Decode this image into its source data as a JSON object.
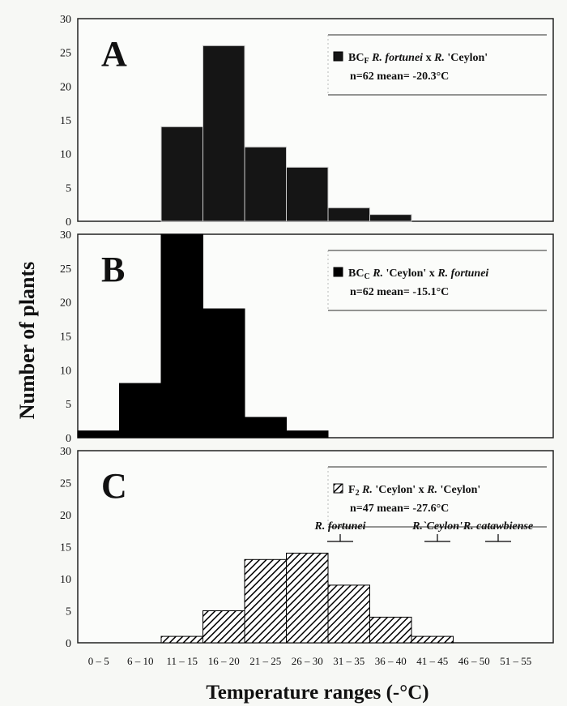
{
  "chart_data": [
    {
      "type": "bar",
      "panel_letter": "A",
      "legend": {
        "code": "BC",
        "code_sub": "F",
        "cross_parts": [
          "R. fortunei",
          " x ",
          "R.",
          " 'Ceylon'"
        ],
        "stats": "n=62    mean= -20.3°C"
      },
      "legend_placement": "top-right",
      "fill": "dark-stipple",
      "color": "#151515",
      "categories": [
        "0 – 5",
        "6 – 10",
        "11 – 15",
        "16 – 20",
        "21 – 25",
        "26 – 30",
        "31 – 35",
        "36 – 40",
        "41 – 45",
        "46 – 50",
        "51 – 55"
      ],
      "values": [
        0,
        0,
        14,
        26,
        11,
        8,
        2,
        1,
        0,
        0,
        0
      ],
      "yticks": [
        "0",
        "5",
        "10",
        "15",
        "20",
        "25",
        "30"
      ],
      "ylim": [
        0,
        30
      ]
    },
    {
      "type": "bar",
      "panel_letter": "B",
      "legend": {
        "code": "BC",
        "code_sub": "C",
        "cross_parts": [
          "R.",
          " 'Ceylon' x ",
          "R. fortunei",
          ""
        ],
        "stats": "n=62    mean= -15.1°C"
      },
      "legend_placement": "top-right",
      "fill": "solid",
      "color": "#000000",
      "categories": [
        "0 – 5",
        "6 – 10",
        "11 – 15",
        "16 – 20",
        "21 – 25",
        "26 – 30",
        "31 – 35",
        "36 – 40",
        "41 – 45",
        "46 – 50",
        "51 – 55"
      ],
      "values": [
        1,
        8,
        30,
        19,
        3,
        1,
        0,
        0,
        0,
        0,
        0
      ],
      "yticks": [
        "0",
        "5",
        "10",
        "15",
        "20",
        "25",
        "30"
      ],
      "ylim": [
        0,
        30
      ]
    },
    {
      "type": "bar",
      "panel_letter": "C",
      "legend": {
        "code": "F",
        "code_sub": "2",
        "cross_parts": [
          "R.",
          " 'Ceylon' x ",
          "R.",
          " 'Ceylon'"
        ],
        "stats": "n=47    mean= -27.6°C"
      },
      "legend_placement": "top-right",
      "fill": "diagonal-hatch",
      "color": "#000000",
      "categories": [
        "0 – 5",
        "6 – 10",
        "11 – 15",
        "16 – 20",
        "21 – 25",
        "26 – 30",
        "31 – 35",
        "36 – 40",
        "41 – 45",
        "46 – 50",
        "51 – 55"
      ],
      "values": [
        0,
        0,
        1,
        5,
        13,
        14,
        9,
        4,
        1,
        0,
        0
      ],
      "yticks": [
        "0",
        "5",
        "10",
        "15",
        "20",
        "25",
        "30"
      ],
      "ylim": [
        0,
        30
      ],
      "annotations": [
        {
          "text": "R. fortunei"
        },
        {
          "text": "R.`Ceylon'"
        },
        {
          "text": "R. catawbiense"
        }
      ]
    }
  ],
  "xlabel": "Temperature ranges (-°C)",
  "ylabel": "Number of plants",
  "xtick_labels": [
    "0 – 5",
    "6 – 10",
    "11 – 15",
    "16 – 20",
    "21 – 25",
    "26 – 30",
    "31 – 35",
    "36 – 40",
    "41 – 45",
    "46 – 50",
    "51 – 55"
  ]
}
